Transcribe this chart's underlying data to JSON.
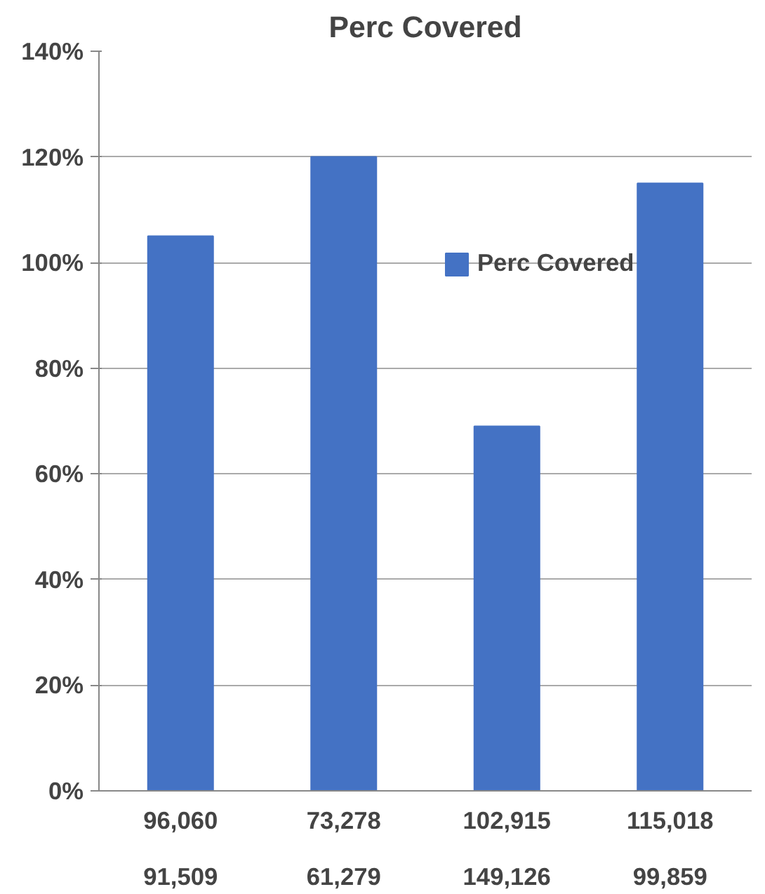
{
  "chart_data": {
    "type": "bar",
    "title": "Perc Covered",
    "categories": [
      "96,060\n91,509",
      "73,278\n61,279",
      "102,915\n149,126",
      "115,018\n99,859"
    ],
    "series": [
      {
        "name": "Perc Covered",
        "color": "#4472c4",
        "values": [
          105,
          120,
          69,
          115
        ]
      }
    ],
    "ylim": [
      0,
      140
    ],
    "yticks": [
      {
        "value": 0,
        "label": "0%"
      },
      {
        "value": 20,
        "label": "20%"
      },
      {
        "value": 40,
        "label": "40%"
      },
      {
        "value": 60,
        "label": "60%"
      },
      {
        "value": 80,
        "label": "80%"
      },
      {
        "value": 100,
        "label": "100%"
      },
      {
        "value": 120,
        "label": "120%"
      },
      {
        "value": 140,
        "label": "140%"
      }
    ],
    "grid": "y",
    "legend": "right"
  }
}
